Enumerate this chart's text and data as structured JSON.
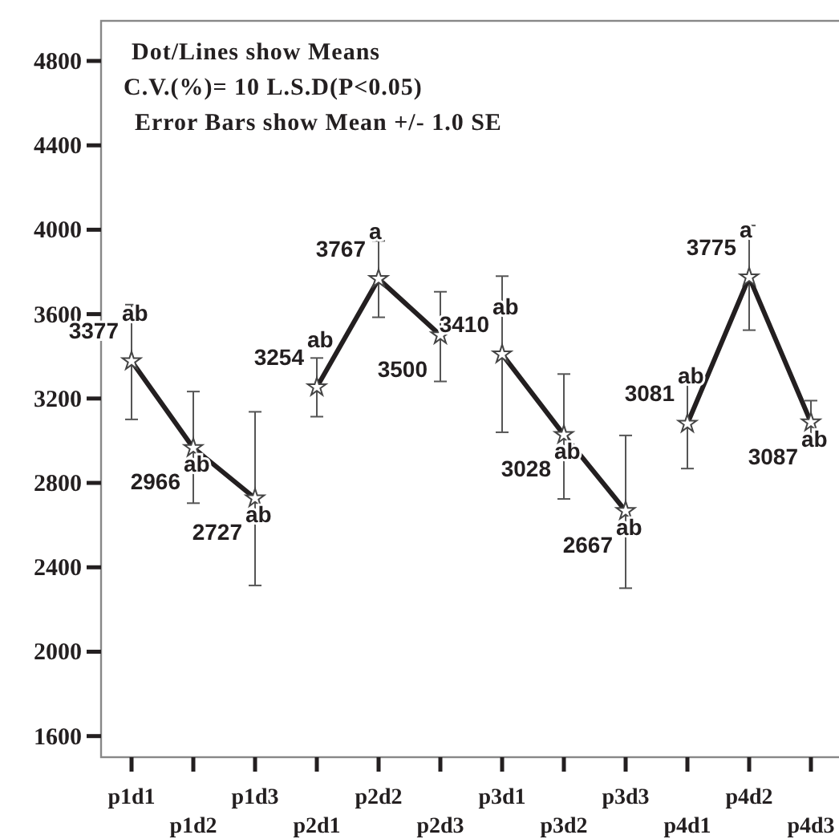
{
  "chart_data": {
    "type": "line",
    "categories": [
      "p1d1",
      "p1d2",
      "p1d3",
      "p2d1",
      "p2d2",
      "p2d3",
      "p3d1",
      "p3d2",
      "p3d3",
      "p4d1",
      "p4d2",
      "p4d3"
    ],
    "series": [
      {
        "color": "#231f20",
        "values": [
          3377,
          2966,
          2727,
          null,
          null,
          null,
          null,
          null,
          null,
          null,
          null,
          null
        ],
        "errors": [
          [
            3101,
            3645
          ],
          [
            2704,
            3233
          ],
          [
            2314,
            3137
          ],
          null,
          null,
          null,
          null,
          null,
          null,
          null,
          null,
          null
        ]
      },
      {
        "color": "#231f20",
        "values": [
          null,
          null,
          null,
          3254,
          3767,
          3500,
          null,
          null,
          null,
          null,
          null,
          null
        ],
        "errors": [
          null,
          null,
          null,
          [
            3114,
            3392
          ],
          [
            3585,
            3947
          ],
          [
            3281,
            3706
          ],
          null,
          null,
          null,
          null,
          null,
          null
        ]
      },
      {
        "color": "#231f20",
        "values": [
          null,
          null,
          null,
          null,
          null,
          null,
          3410,
          3028,
          2667,
          null,
          null,
          null
        ],
        "errors": [
          null,
          null,
          null,
          null,
          null,
          null,
          [
            3040,
            3780
          ],
          [
            2724,
            3316
          ],
          [
            2301,
            3025
          ],
          null,
          null,
          null
        ]
      },
      {
        "color": "#231f20",
        "values": [
          null,
          null,
          null,
          null,
          null,
          null,
          null,
          null,
          null,
          3081,
          3775,
          3087
        ],
        "errors": [
          null,
          null,
          null,
          null,
          null,
          null,
          null,
          null,
          null,
          [
            2868,
            3296
          ],
          [
            3524,
            4020
          ],
          [
            2979,
            3190
          ]
        ]
      }
    ],
    "ylim": [
      1500,
      4990
    ],
    "yticks": [
      1600,
      2000,
      2400,
      2800,
      3200,
      3600,
      4000,
      4400,
      4800
    ],
    "grid": false,
    "marker": "star",
    "line_style": "solid",
    "data_labels": true,
    "annotations": [
      "Dot/Lines show Means",
      "C.V.(%)= 10  L.S.D(P<0.05)",
      "Error Bars show Mean +/- 1.0 SE",
      {
        "text": "ab",
        "x": "p1d1",
        "y": 3377
      },
      {
        "text": "ab",
        "x": "p1d2",
        "y": 2966
      },
      {
        "text": "ab",
        "x": "p1d3",
        "y": 2727
      },
      {
        "text": "ab",
        "x": "p2d1",
        "y": 3254
      },
      {
        "text": "a",
        "x": "p2d2",
        "y": 3767
      },
      {
        "text": "ab",
        "x": "p3d1",
        "y": 3410
      },
      {
        "text": "ab",
        "x": "p3d2",
        "y": 3028
      },
      {
        "text": "ab",
        "x": "p3d3",
        "y": 2667
      },
      {
        "text": "ab",
        "x": "p4d1",
        "y": 3081
      },
      {
        "text": "a",
        "x": "p4d2",
        "y": 3775
      },
      {
        "text": "ab",
        "x": "p4d3",
        "y": 3087
      }
    ]
  }
}
